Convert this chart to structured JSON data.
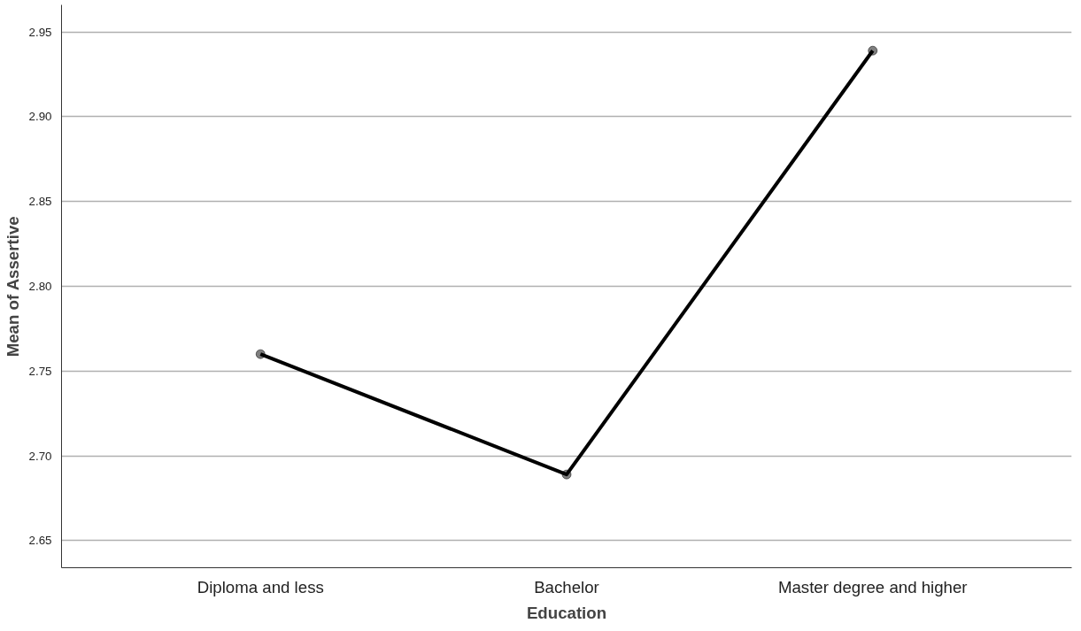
{
  "chart_data": {
    "type": "line",
    "xlabel": "Education",
    "ylabel": "Mean of Assertive",
    "categories": [
      "Diploma and less",
      "Bachelor",
      "Master degree and higher"
    ],
    "series": [
      {
        "color": "#000000",
        "values": [
          2.76,
          2.689,
          2.939
        ]
      }
    ],
    "ylim": [
      2.634,
      2.966
    ],
    "yticks": [
      {
        "value": 2.65,
        "label": "2.65"
      },
      {
        "value": 2.7,
        "label": "2.70"
      },
      {
        "value": 2.75,
        "label": "2.75"
      },
      {
        "value": 2.8,
        "label": "2.80"
      },
      {
        "value": 2.85,
        "label": "2.85"
      },
      {
        "value": 2.9,
        "label": "2.90"
      },
      {
        "value": 2.95,
        "label": "2.95"
      }
    ],
    "grid": "y",
    "marker": "circle",
    "line_style": "solid"
  }
}
